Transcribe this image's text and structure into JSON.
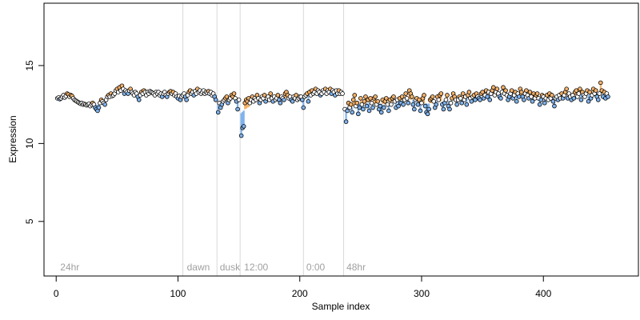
{
  "chart_data": {
    "type": "scatter",
    "title": "",
    "xlabel": "Sample index",
    "ylabel": "Expression",
    "xlim": [
      -10,
      478
    ],
    "ylim": [
      1.5,
      19.0
    ],
    "x_ticks": [
      0,
      100,
      200,
      300,
      400
    ],
    "y_ticks": [
      5,
      10,
      15
    ],
    "grid": false,
    "legend": "none",
    "segment_lines": [
      104,
      132,
      151,
      203,
      236
    ],
    "segment_labels": [
      {
        "label": "24hr",
        "x": 2
      },
      {
        "label": "dawn",
        "x": 106
      },
      {
        "label": "dusk",
        "x": 133
      },
      {
        "label": "12:00",
        "x": 153
      },
      {
        "label": "0:00",
        "x": 204
      },
      {
        "label": "48hr",
        "x": 237
      }
    ],
    "colors": {
      "baseline": "#ffffff",
      "above": "#f5b26b",
      "below": "#7fb3ee",
      "segment_line": "#d9d9d9",
      "point_edge": "#000000"
    },
    "series": [
      {
        "segments": [
          {
            "x_start": 1,
            "values": [
              12.9,
              12.95,
              12.85,
              12.9,
              13.0,
              13.1,
              12.95,
              13.05,
              13.2,
              13.15,
              13.0,
              13.1,
              13.05,
              12.9,
              12.8,
              12.75,
              12.7,
              12.65,
              12.6,
              12.55,
              12.6,
              12.5,
              12.55,
              12.5,
              12.45,
              12.5,
              12.55,
              12.4,
              12.5,
              12.6,
              12.5,
              12.3,
              12.2,
              12.1,
              12.3,
              12.6,
              12.8,
              12.7,
              12.6,
              12.5,
              12.8,
              13.0,
              13.1,
              13.0,
              13.2,
              13.05,
              13.1,
              13.2,
              13.4,
              13.5,
              13.3,
              13.6,
              13.4,
              13.7,
              13.5,
              13.2,
              13.4,
              13.3,
              13.2,
              13.4,
              13.5,
              13.3,
              13.2,
              13.1,
              13.3,
              13.2,
              13.0,
              12.8,
              13.1,
              13.3,
              13.2,
              13.4,
              13.3,
              13.1,
              13.3,
              13.2,
              13.35,
              13.3,
              13.25,
              13.2,
              13.1,
              13.3,
              13.2,
              13.3,
              13.1,
              13.2,
              13.0,
              13.2,
              13.3,
              13.1,
              13.0,
              13.2,
              13.3,
              13.35,
              13.2,
              13.3,
              13.1,
              13.2,
              13.0,
              12.9,
              13.05,
              12.8,
              13.0,
              13.1
            ]
          },
          {
            "x_start": 105,
            "values": [
              13.2,
              13.0,
              12.8,
              13.1,
              13.3,
              13.4,
              13.2,
              13.3,
              13.1,
              13.35,
              13.2,
              13.5,
              13.3,
              13.4,
              13.2,
              13.3,
              13.4,
              13.2,
              13.3,
              13.25,
              13.35,
              13.2,
              13.3,
              13.1,
              13.2,
              13.0,
              12.8
            ]
          },
          {
            "x_start": 133,
            "values": [
              12.0,
              12.6,
              12.3,
              12.5,
              12.7,
              12.8,
              12.9,
              13.0,
              12.6,
              12.8,
              12.9,
              13.1,
              13.0,
              13.2,
              12.9,
              12.7,
              12.2,
              12.8
            ]
          },
          {
            "x_start": 152,
            "values": [
              10.5,
              11.0,
              11.1,
              12.6,
              12.8,
              12.7,
              12.9,
              12.6,
              12.8,
              13.0,
              12.7,
              12.9,
              12.8,
              13.1,
              12.9,
              12.6,
              12.8,
              13.0,
              12.9,
              13.1,
              12.7,
              12.9,
              13.0,
              12.8,
              13.2,
              12.9,
              12.7,
              13.0,
              12.8,
              12.9,
              13.1,
              12.8,
              12.6,
              13.0,
              12.9,
              12.8,
              13.2,
              13.3,
              13.1,
              12.9,
              13.0,
              12.8,
              12.7,
              13.0,
              12.9,
              13.1,
              12.8,
              12.9,
              13.0,
              13.0,
              12.8
            ]
          },
          {
            "x_start": 203,
            "values": [
              12.3,
              13.0,
              13.1,
              13.2,
              12.7,
              13.3,
              13.1,
              13.4,
              13.2,
              13.3,
              13.5,
              13.2,
              13.4,
              13.3,
              13.1,
              13.2,
              13.4,
              13.3,
              13.5,
              13.2,
              13.4,
              13.3,
              13.5,
              13.2,
              13.4,
              13.3,
              13.1,
              13.4,
              13.2,
              13.4,
              13.2,
              13.3,
              13.2
            ]
          },
          {
            "x_start": 237,
            "values": [
              12.2,
              11.4,
              12.1,
              12.6,
              12.3,
              12.5,
              12.0,
              12.8,
              13.1,
              12.4,
              12.6,
              11.9,
              12.3,
              12.9,
              12.5,
              12.2,
              12.7,
              13.0,
              12.4,
              12.8,
              12.1,
              12.9,
              12.6,
              12.3,
              12.9,
              13.0,
              12.5,
              12.7,
              12.2,
              12.4,
              12.0,
              12.8,
              12.3,
              12.7,
              12.9,
              12.5,
              12.1,
              12.8,
              12.5,
              12.9,
              13.0,
              12.7,
              12.3,
              12.8,
              12.4,
              12.9,
              12.6,
              13.0,
              12.5,
              12.8,
              13.2,
              12.9,
              12.6,
              13.4,
              13.2,
              13.0,
              12.5,
              12.2,
              12.8,
              12.9,
              12.5,
              12.8,
              12.1,
              12.6,
              12.9,
              13.1,
              12.4,
              12.0,
              11.9,
              12.2,
              12.8,
              12.9,
              13.0,
              12.7,
              12.3,
              12.5,
              13.0,
              12.8,
              13.1,
              13.2,
              12.5,
              12.2,
              12.6,
              12.8,
              13.1,
              12.4,
              12.2,
              12.6,
              12.9,
              13.2,
              13.0,
              12.8,
              12.5,
              12.8,
              13.0,
              12.9,
              12.6,
              13.2,
              12.8,
              13.0,
              12.5,
              13.1,
              13.3,
              12.9,
              12.7,
              13.0,
              13.1,
              12.8,
              13.2,
              13.0,
              12.9,
              12.8,
              13.2,
              13.3,
              12.9,
              13.1,
              13.4,
              13.0,
              13.3,
              12.8,
              13.2,
              13.4,
              13.6,
              13.1,
              13.3,
              13.5,
              13.2,
              13.0,
              12.9,
              13.3,
              13.6,
              13.2,
              13.4,
              13.1,
              12.8,
              13.0,
              13.2,
              13.4,
              12.9,
              13.1,
              13.3,
              12.7,
              13.2,
              13.0,
              13.5,
              13.3,
              13.0,
              12.8,
              13.2,
              13.4,
              13.1,
              12.9,
              13.3,
              13.0,
              12.7,
              13.2,
              12.9,
              13.1,
              13.2,
              12.9,
              12.5,
              12.8,
              13.1,
              13.0,
              12.6,
              12.9,
              13.1,
              12.8,
              13.2,
              12.9,
              13.1,
              12.7,
              12.4,
              12.9,
              13.0,
              12.8,
              13.1,
              12.9,
              13.2,
              12.9,
              13.1,
              13.3,
              13.5,
              12.9,
              13.2,
              13.0,
              12.8,
              13.1,
              12.9,
              13.3,
              13.4,
              13.0,
              13.2,
              13.5,
              12.8,
              13.3,
              13.1,
              13.0,
              13.2,
              13.4,
              12.7,
              13.3,
              12.9,
              13.1,
              13.5,
              13.2,
              13.4,
              13.0,
              12.8,
              13.2,
              13.9,
              13.4,
              13.0,
              13.3,
              12.9,
              13.2,
              13.0
            ]
          }
        ]
      }
    ]
  }
}
